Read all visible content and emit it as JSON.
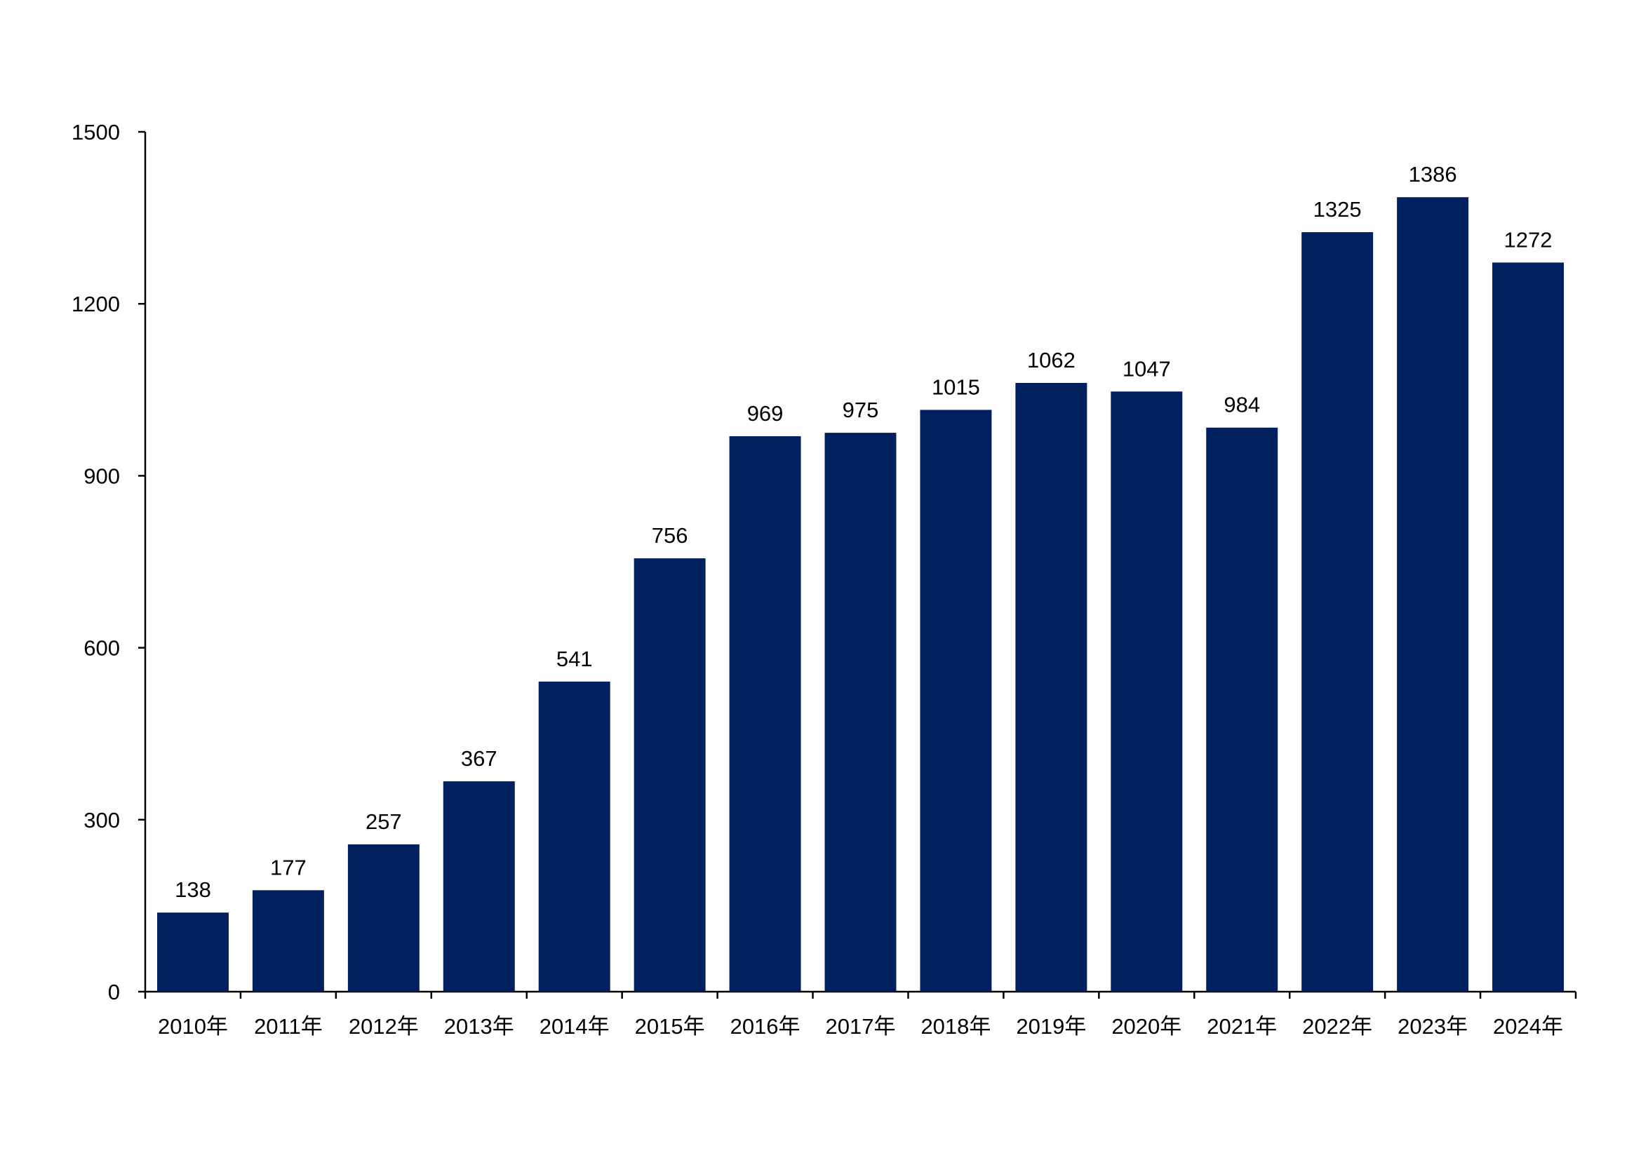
{
  "chart_data": {
    "type": "bar",
    "categories": [
      "2010年",
      "2011年",
      "2012年",
      "2013年",
      "2014年",
      "2015年",
      "2016年",
      "2017年",
      "2018年",
      "2019年",
      "2020年",
      "2021年",
      "2022年",
      "2023年",
      "2024年"
    ],
    "values": [
      138,
      177,
      257,
      367,
      541,
      756,
      969,
      975,
      1015,
      1062,
      1047,
      984,
      1325,
      1386,
      1272
    ],
    "title": "",
    "xlabel": "",
    "ylabel": "",
    "ylim": [
      0,
      1500
    ],
    "yticks": [
      0,
      300,
      600,
      900,
      1200,
      1500
    ],
    "grid": false,
    "data_labels": true,
    "bar_color": "#002060"
  }
}
